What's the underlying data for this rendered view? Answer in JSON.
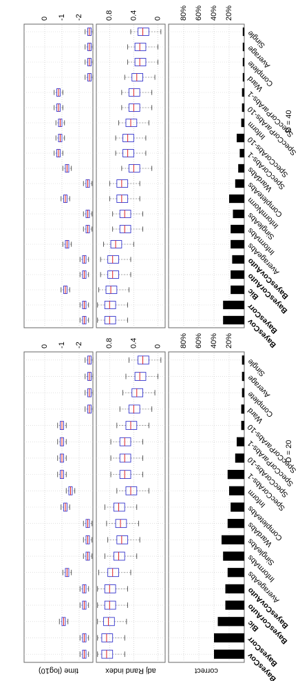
{
  "chart_data": [
    {
      "type": "box",
      "title": "D = 20",
      "categories": [
        "BayesCov",
        "BayesCorr",
        "Bic",
        "BayesCorAuto",
        "BayesCovAuto",
        "AverageAbs",
        "InformAbs",
        "SingleAbs",
        "WardAbs",
        "CompleteAbs",
        "Inform",
        "SpecCorAbs-1",
        "SpecCorAbs-10",
        "SpecCorParAbs-1",
        "SpecCorParAbs-10",
        "Ward",
        "Complete",
        "Average",
        "Single"
      ],
      "panels": [
        {
          "type": "box",
          "ylabel": "time (log10)",
          "ylim": [
            -2.8,
            1.2
          ],
          "yticks": [
            0,
            -1,
            -2
          ],
          "whislo": [
            -2.55,
            -2.55,
            -1.35,
            -2.55,
            -2.55,
            -1.55,
            -2.75,
            -2.75,
            -2.75,
            -1.45,
            -1.75,
            -1.25,
            -1.25,
            -1.25,
            -1.25,
            -2.8,
            -2.8,
            -2.8,
            -2.8
          ],
          "q1": [
            -2.4,
            -2.4,
            -1.2,
            -2.4,
            -2.4,
            -1.4,
            -2.6,
            -2.6,
            -2.6,
            -1.3,
            -1.6,
            -1.1,
            -1.1,
            -1.1,
            -1.1,
            -2.7,
            -2.7,
            -2.7,
            -2.7
          ],
          "median": [
            -2.3,
            -2.3,
            -1.1,
            -2.3,
            -2.3,
            -1.3,
            -2.5,
            -2.5,
            -2.5,
            -1.2,
            -1.5,
            -1.0,
            -1.0,
            -1.0,
            -1.0,
            -2.6,
            -2.6,
            -2.6,
            -2.6
          ],
          "q3": [
            -2.2,
            -2.2,
            -1.0,
            -2.2,
            -2.2,
            -1.2,
            -2.4,
            -2.4,
            -2.4,
            -1.1,
            -1.4,
            -0.9,
            -0.9,
            -0.9,
            -0.9,
            -2.5,
            -2.5,
            -2.5,
            -2.5
          ],
          "whishi": [
            -2.05,
            -2.05,
            -0.85,
            -2.05,
            -2.05,
            -1.05,
            -2.25,
            -2.25,
            -2.25,
            -0.95,
            -1.25,
            -0.75,
            -0.75,
            -0.75,
            -0.75,
            -2.35,
            -2.35,
            -2.35,
            -2.35
          ]
        },
        {
          "type": "box",
          "ylabel": "adj Rand index",
          "ylim": [
            -0.12,
            1.02
          ],
          "yticks": [
            0,
            0.4,
            0.8
          ],
          "whislo": [
            0.55,
            0.55,
            0.52,
            0.5,
            0.5,
            0.45,
            0.35,
            0.3,
            0.32,
            0.35,
            0.15,
            0.25,
            0.25,
            0.25,
            0.15,
            0.1,
            0.05,
            0.0,
            -0.05
          ],
          "q1": [
            0.75,
            0.75,
            0.72,
            0.7,
            0.7,
            0.65,
            0.55,
            0.5,
            0.52,
            0.55,
            0.35,
            0.45,
            0.45,
            0.45,
            0.35,
            0.3,
            0.25,
            0.2,
            0.15
          ],
          "median": [
            0.85,
            0.85,
            0.82,
            0.8,
            0.8,
            0.75,
            0.65,
            0.6,
            0.62,
            0.65,
            0.45,
            0.55,
            0.55,
            0.55,
            0.45,
            0.4,
            0.35,
            0.3,
            0.25
          ],
          "q3": [
            0.93,
            0.93,
            0.9,
            0.88,
            0.88,
            0.83,
            0.73,
            0.68,
            0.7,
            0.73,
            0.53,
            0.63,
            0.63,
            0.63,
            0.53,
            0.48,
            0.43,
            0.38,
            0.33
          ],
          "whishi": [
            1.0,
            1.0,
            1.0,
            1.0,
            1.0,
            0.98,
            0.88,
            0.83,
            0.85,
            0.88,
            0.68,
            0.78,
            0.78,
            0.78,
            0.68,
            0.63,
            0.58,
            0.53,
            0.48
          ]
        },
        {
          "type": "bar",
          "ylabel": "correct",
          "ylim": [
            0,
            100
          ],
          "color": "#000000",
          "yticks": [
            {
              "value": 20,
              "label": "20%"
            },
            {
              "value": 40,
              "label": "40%"
            },
            {
              "value": 60,
              "label": "60%"
            },
            {
              "value": 80,
              "label": "80%"
            }
          ],
          "values": [
            40,
            40,
            35,
            25,
            25,
            22,
            28,
            30,
            22,
            18,
            20,
            22,
            12,
            10,
            4,
            4,
            3,
            3,
            3
          ]
        }
      ]
    },
    {
      "type": "box",
      "title": "D = 40",
      "categories": [
        "BayesCov",
        "BayesCorr",
        "Bic",
        "BayesCorAuto",
        "BayesCovAuto",
        "AverageAbs",
        "InformAbs",
        "SingleAbs",
        "InformNorm",
        "CompleteAbs",
        "WardAbs",
        "SpecCorAbs-1",
        "SpecCorAbs-10",
        "Inform",
        "SpecCorParAbs-10",
        "SpecCorParAbs-1",
        "Ward",
        "Complete",
        "Average",
        "Single"
      ],
      "panels": [
        {
          "type": "box",
          "ylim": [
            -2.8,
            1.2
          ],
          "yticks": [
            0,
            -1,
            -2
          ],
          "whislo": [
            -2.55,
            -2.55,
            -1.45,
            -2.55,
            -2.55,
            -1.55,
            -2.75,
            -2.75,
            -1.45,
            -2.75,
            -1.55,
            -1.05,
            -1.15,
            -1.15,
            -1.05,
            -1.05,
            -2.8,
            -2.8,
            -2.8,
            -2.8
          ],
          "q1": [
            -2.4,
            -2.4,
            -1.3,
            -2.4,
            -2.4,
            -1.4,
            -2.6,
            -2.6,
            -1.3,
            -2.6,
            -1.4,
            -0.9,
            -1.0,
            -1.0,
            -0.9,
            -0.9,
            -2.7,
            -2.7,
            -2.7,
            -2.7
          ],
          "median": [
            -2.3,
            -2.3,
            -1.2,
            -2.3,
            -2.3,
            -1.3,
            -2.5,
            -2.5,
            -1.2,
            -2.5,
            -1.3,
            -0.8,
            -0.9,
            -0.9,
            -0.8,
            -0.8,
            -2.6,
            -2.6,
            -2.6,
            -2.6
          ],
          "q3": [
            -2.2,
            -2.2,
            -1.1,
            -2.2,
            -2.2,
            -1.2,
            -2.4,
            -2.4,
            -1.1,
            -2.4,
            -1.2,
            -0.7,
            -0.8,
            -0.8,
            -0.7,
            -0.7,
            -2.5,
            -2.5,
            -2.5,
            -2.5
          ],
          "whishi": [
            -2.05,
            -2.05,
            -0.95,
            -2.05,
            -2.05,
            -1.05,
            -2.25,
            -2.25,
            -0.95,
            -2.25,
            -1.05,
            -0.55,
            -0.65,
            -0.65,
            -0.55,
            -0.55,
            -2.35,
            -2.35,
            -2.35,
            -2.35
          ]
        },
        {
          "type": "box",
          "ylim": [
            -0.12,
            1.02
          ],
          "yticks": [
            0,
            0.4,
            0.8
          ],
          "whislo": [
            0.5,
            0.5,
            0.48,
            0.45,
            0.45,
            0.4,
            0.25,
            0.25,
            0.3,
            0.3,
            0.1,
            0.2,
            0.2,
            0.15,
            0.1,
            0.1,
            0.05,
            0.0,
            0.0,
            -0.05
          ],
          "q1": [
            0.7,
            0.7,
            0.68,
            0.65,
            0.65,
            0.6,
            0.45,
            0.45,
            0.5,
            0.5,
            0.3,
            0.4,
            0.4,
            0.35,
            0.3,
            0.3,
            0.25,
            0.2,
            0.2,
            0.15
          ],
          "median": [
            0.8,
            0.8,
            0.78,
            0.75,
            0.75,
            0.7,
            0.55,
            0.55,
            0.6,
            0.6,
            0.4,
            0.5,
            0.5,
            0.45,
            0.4,
            0.4,
            0.35,
            0.3,
            0.3,
            0.25
          ],
          "q3": [
            0.88,
            0.88,
            0.86,
            0.83,
            0.83,
            0.78,
            0.63,
            0.63,
            0.68,
            0.68,
            0.48,
            0.58,
            0.58,
            0.53,
            0.48,
            0.48,
            0.43,
            0.38,
            0.38,
            0.33
          ],
          "whishi": [
            1.0,
            1.0,
            0.98,
            0.95,
            0.95,
            0.9,
            0.75,
            0.75,
            0.8,
            0.8,
            0.6,
            0.7,
            0.7,
            0.65,
            0.6,
            0.6,
            0.55,
            0.5,
            0.5,
            0.45
          ]
        },
        {
          "type": "bar",
          "ylim": [
            0,
            100
          ],
          "color": "#000000",
          "yticks": [
            {
              "value": 20,
              "label": "20%"
            },
            {
              "value": 40,
              "label": "40%"
            },
            {
              "value": 60,
              "label": "60%"
            },
            {
              "value": 80,
              "label": "80%"
            }
          ],
          "values": [
            28,
            28,
            18,
            18,
            16,
            18,
            18,
            15,
            20,
            12,
            8,
            6,
            10,
            4,
            3,
            3,
            2,
            2,
            2,
            2
          ]
        }
      ]
    }
  ]
}
